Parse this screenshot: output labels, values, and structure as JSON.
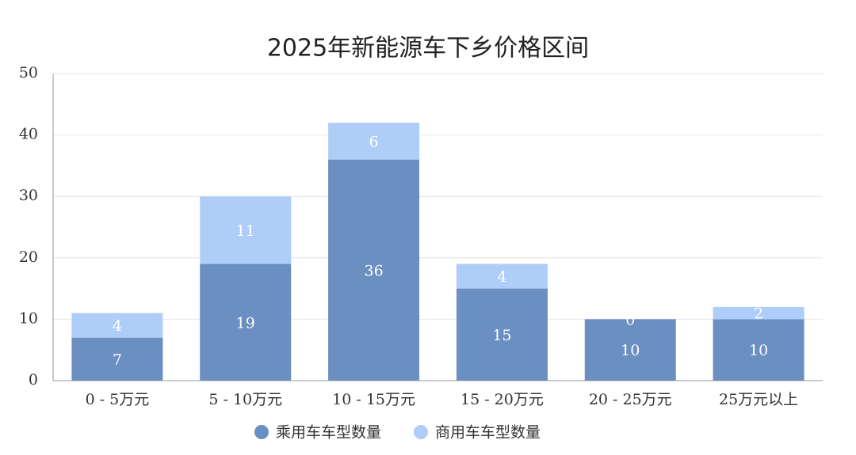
{
  "chart_data": {
    "type": "stacked_bar",
    "title": "2025年新能源车下乡价格区间",
    "categories": [
      "0 - 5万元",
      "5 - 10万元",
      "10 - 15万元",
      "15 - 20万元",
      "20 - 25万元",
      "25万元以上"
    ],
    "series": [
      {
        "name": "乘用车车型数量",
        "color": "#6a8fc0",
        "values": [
          7,
          19,
          36,
          15,
          10,
          10
        ]
      },
      {
        "name": "商用车车型数量",
        "color": "#aecdf8",
        "values": [
          4,
          11,
          6,
          4,
          0,
          2
        ]
      }
    ],
    "ylim": [
      0,
      50
    ],
    "yticks": [
      0,
      10,
      20,
      30,
      40,
      50
    ],
    "grid": true,
    "legend": "bottom"
  }
}
